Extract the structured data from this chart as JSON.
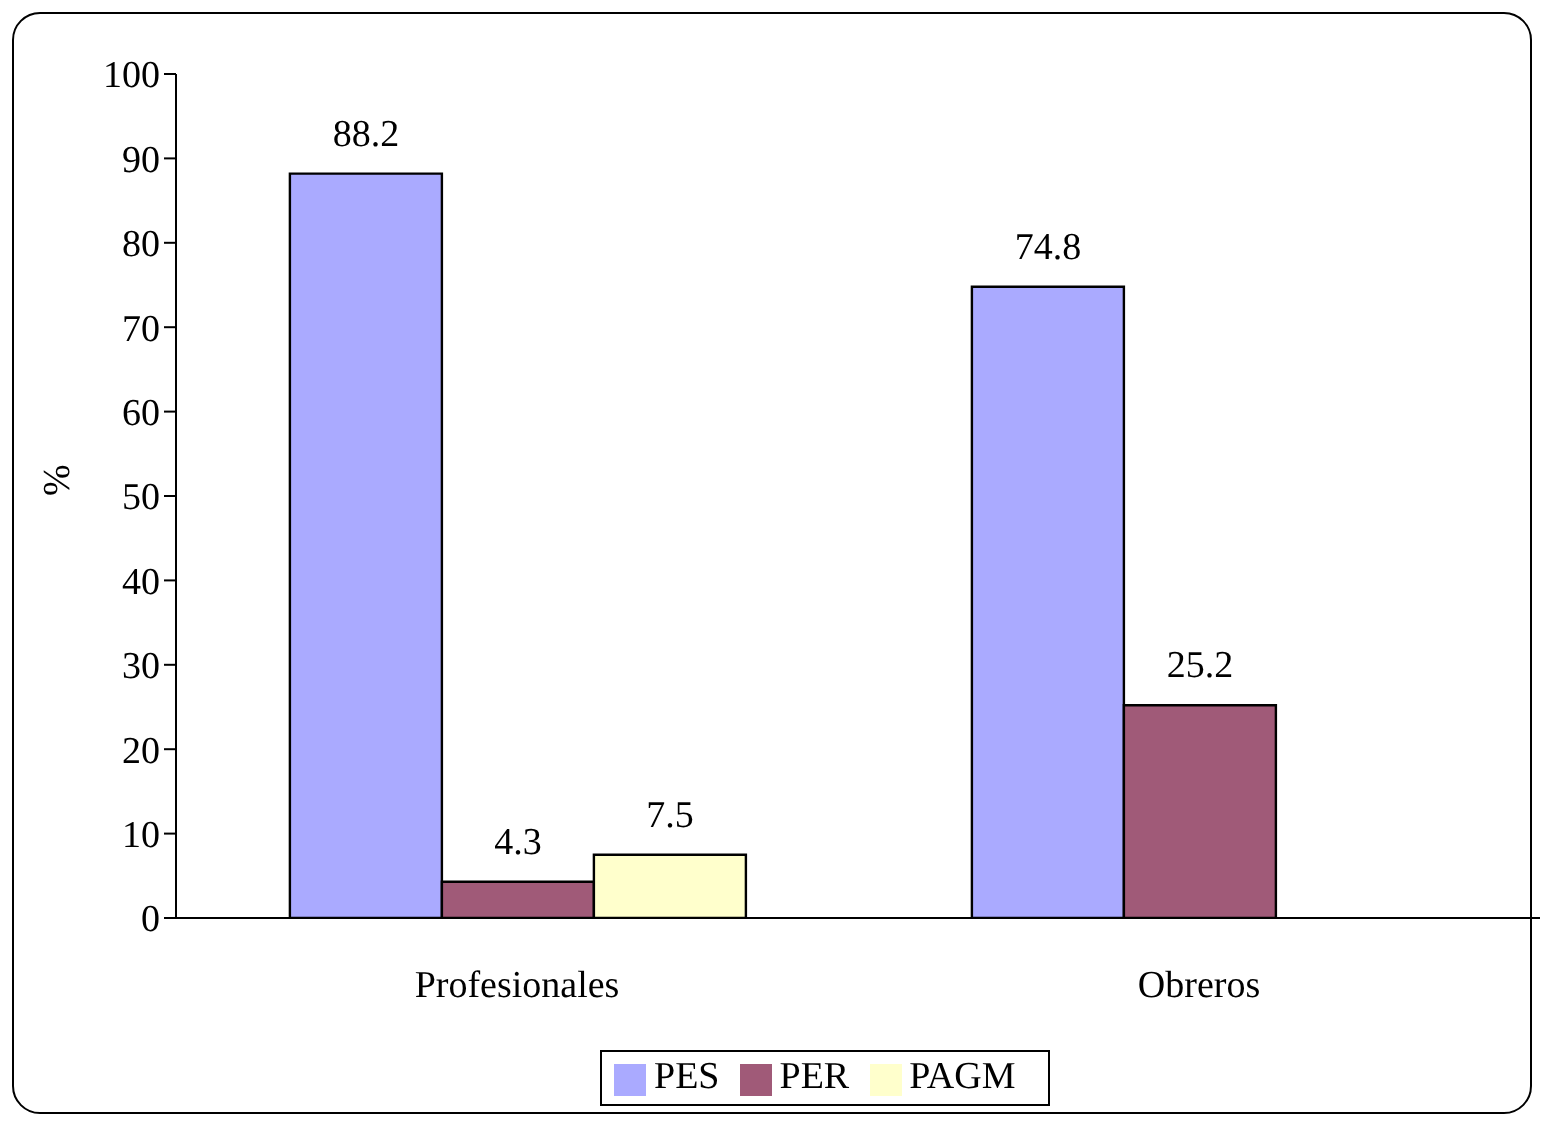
{
  "chart_data": {
    "type": "bar",
    "ylabel": "%",
    "categories": [
      "Profesionales",
      "Obreros"
    ],
    "series": [
      {
        "name": "PES",
        "color": "#aaaaff",
        "values": [
          88.2,
          74.8
        ]
      },
      {
        "name": "PER",
        "color": "#a05a78",
        "values": [
          4.3,
          25.2
        ]
      },
      {
        "name": "PAGM",
        "color": "#ffffcc",
        "values": [
          7.5,
          null
        ]
      }
    ],
    "ylim": [
      0,
      100
    ],
    "yticks": [
      0,
      10,
      20,
      30,
      40,
      50,
      60,
      70,
      80,
      90,
      100
    ],
    "grid": false,
    "legend": "bottom",
    "data_labels": true
  }
}
